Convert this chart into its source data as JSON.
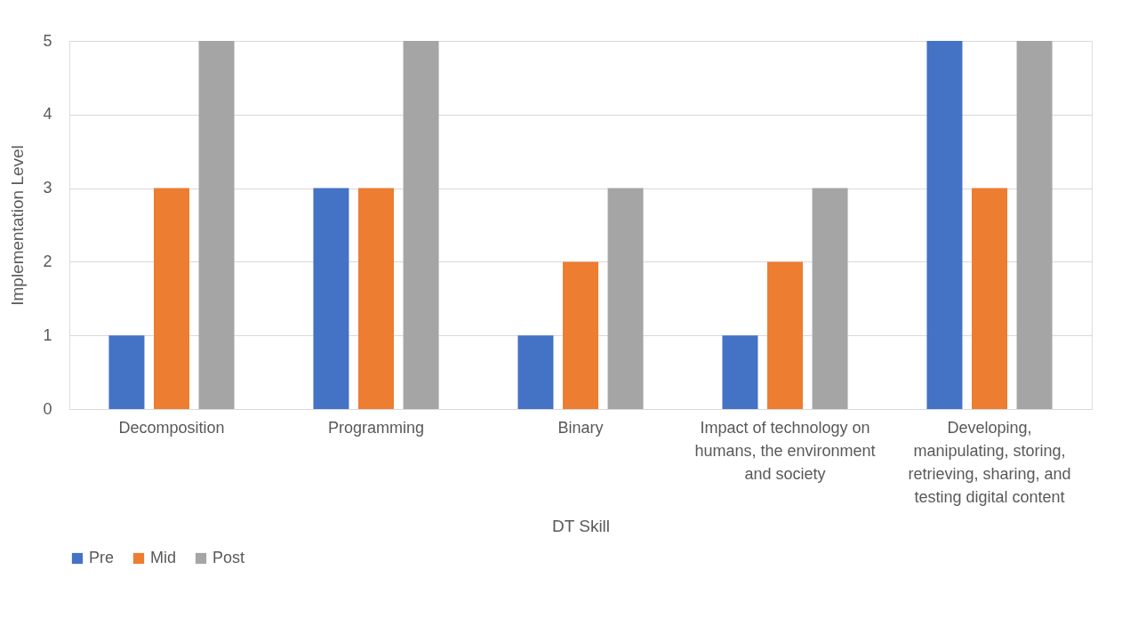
{
  "chart_data": {
    "type": "bar",
    "xlabel": "DT Skill",
    "ylabel": "Implementation Level",
    "categories": [
      "Decomposition",
      "Programming",
      "Binary",
      "Impact of technology on humans, the environment and society",
      "Developing, manipulating, storing, retrieving, sharing, and testing digital content"
    ],
    "series": [
      {
        "name": "Pre",
        "color": "#4472c4",
        "values": [
          1,
          3,
          1,
          1,
          5
        ]
      },
      {
        "name": "Mid",
        "color": "#ed7d31",
        "values": [
          3,
          3,
          2,
          2,
          3
        ]
      },
      {
        "name": "Post",
        "color": "#a5a5a5",
        "values": [
          5,
          5,
          3,
          3,
          5
        ]
      }
    ],
    "ylim": [
      0,
      5
    ],
    "yticks": [
      0,
      1,
      2,
      3,
      4,
      5
    ],
    "grid": "y",
    "legend": "bottom"
  }
}
